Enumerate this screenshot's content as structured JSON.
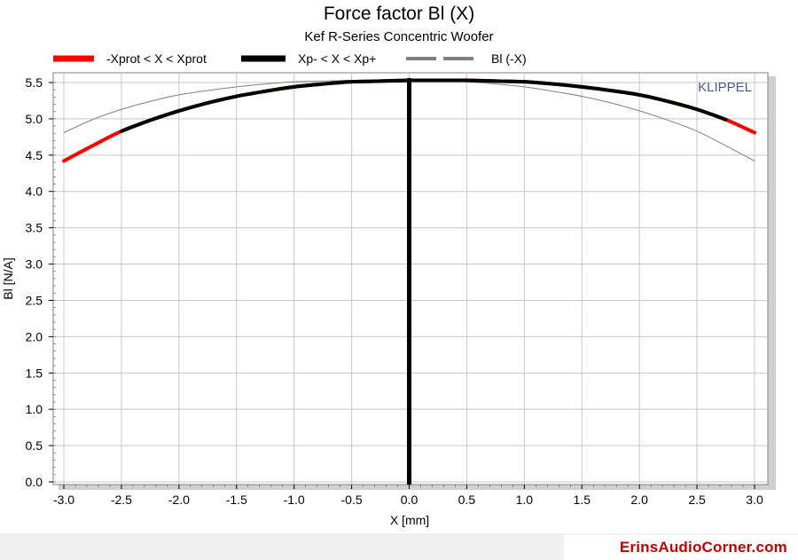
{
  "chart_data": {
    "type": "line",
    "title": "Force factor Bl (X)",
    "subtitle": "Kef R-Series Concentric Woofer",
    "xlabel": "X [mm]",
    "ylabel": "Bl [N/A]",
    "xlim": [
      -3.0,
      3.0
    ],
    "ylim": [
      0.0,
      5.5
    ],
    "x_ticks": [
      "-3.0",
      "-2.5",
      "-2.0",
      "-1.5",
      "-1.0",
      "-0.5",
      "0.0",
      "0.5",
      "1.0",
      "1.5",
      "2.0",
      "2.5",
      "3.0"
    ],
    "y_ticks": [
      "0.0",
      "0.5",
      "1.0",
      "1.5",
      "2.0",
      "2.5",
      "3.0",
      "3.5",
      "4.0",
      "4.5",
      "5.0",
      "5.5"
    ],
    "grid": true,
    "legend_position": "top",
    "watermark": "KLIPPEL",
    "vertical_marker_x": 0.0,
    "series": [
      {
        "name": "-Xprot < X < Xprot",
        "color": "#ff0000",
        "x": [
          -3.0,
          -2.75,
          -2.5,
          -2.25,
          -2.0,
          -1.75,
          -1.5,
          -1.25,
          -1.0,
          -0.75,
          -0.5,
          -0.25,
          0.0,
          0.25,
          0.5,
          0.75,
          1.0,
          1.25,
          1.5,
          1.75,
          2.0,
          2.25,
          2.5,
          2.75,
          3.0
        ],
        "y": [
          4.42,
          4.63,
          4.83,
          4.98,
          5.11,
          5.22,
          5.31,
          5.38,
          5.44,
          5.48,
          5.51,
          5.52,
          5.53,
          5.53,
          5.53,
          5.52,
          5.51,
          5.48,
          5.44,
          5.39,
          5.33,
          5.24,
          5.13,
          4.99,
          4.81
        ]
      },
      {
        "name": "Xp- < X < Xp+",
        "color": "#000000",
        "x": [
          -2.5,
          -2.25,
          -2.0,
          -1.75,
          -1.5,
          -1.25,
          -1.0,
          -0.75,
          -0.5,
          -0.25,
          0.0,
          0.25,
          0.5,
          0.75,
          1.0,
          1.25,
          1.5,
          1.75,
          2.0,
          2.25,
          2.5,
          2.75
        ],
        "y": [
          4.83,
          4.98,
          5.11,
          5.22,
          5.31,
          5.38,
          5.44,
          5.48,
          5.51,
          5.52,
          5.53,
          5.53,
          5.53,
          5.52,
          5.51,
          5.48,
          5.44,
          5.39,
          5.33,
          5.24,
          5.13,
          4.99
        ]
      },
      {
        "name": "Bl (-X)",
        "color": "#808080",
        "x": [
          -3.0,
          -2.75,
          -2.5,
          -2.25,
          -2.0,
          -1.75,
          -1.5,
          -1.25,
          -1.0,
          -0.75,
          -0.5,
          -0.25,
          0.0,
          0.25,
          0.5,
          0.75,
          1.0,
          1.25,
          1.5,
          1.75,
          2.0,
          2.25,
          2.5,
          2.75,
          3.0
        ],
        "y": [
          4.81,
          4.99,
          5.13,
          5.24,
          5.33,
          5.39,
          5.44,
          5.48,
          5.51,
          5.52,
          5.53,
          5.53,
          5.53,
          5.52,
          5.51,
          5.48,
          5.44,
          5.38,
          5.31,
          5.22,
          5.11,
          4.98,
          4.83,
          4.63,
          4.42
        ]
      }
    ]
  },
  "footer": {
    "brand": "ErinsAudioCorner.com"
  }
}
